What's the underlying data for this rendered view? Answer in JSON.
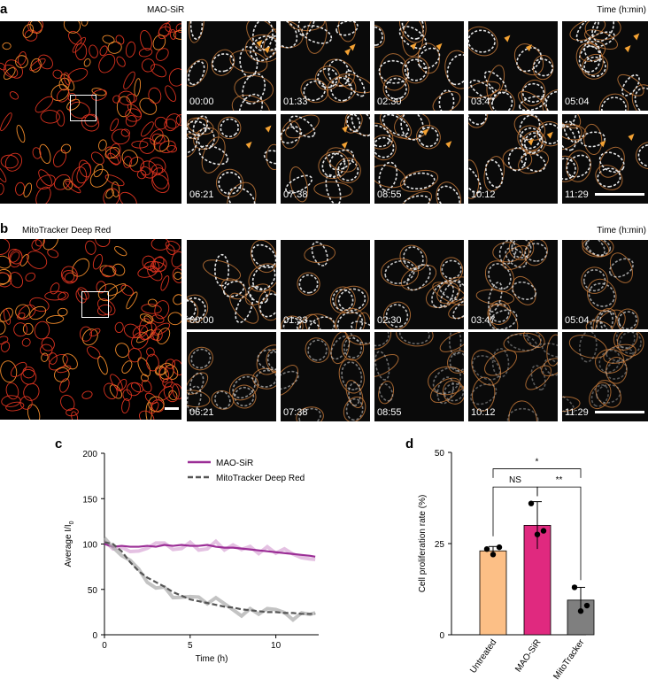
{
  "panel_a": {
    "label": "a",
    "title": "MAO-SiR",
    "time_header": "Time (h:min)",
    "timestamps": [
      "00:00",
      "01:33",
      "02:30",
      "03:47",
      "05:04",
      "06:21",
      "07:38",
      "08:55",
      "10:12",
      "11:29"
    ]
  },
  "panel_b": {
    "label": "b",
    "title": "MitoTracker Deep Red",
    "time_header": "Time (h:min)",
    "timestamps": [
      "00:00",
      "01:33",
      "02:30",
      "03:47",
      "05:04",
      "06:21",
      "07:38",
      "08:55",
      "10:12",
      "11:29"
    ]
  },
  "chart_data": [
    {
      "panel": "c",
      "type": "line",
      "xlabel": "Time (h)",
      "ylabel": "Average I/I",
      "ylabel_subscript": "0",
      "xlim": [
        0,
        12.5
      ],
      "ylim": [
        0,
        200
      ],
      "xticks": [
        0,
        5,
        10
      ],
      "yticks": [
        0,
        50,
        100,
        150,
        200
      ],
      "grid": false,
      "legend_position": "top-right",
      "series": [
        {
          "name": "MAO-SiR",
          "color": "#9b2e96",
          "style": "solid",
          "x": [
            0,
            0.5,
            1,
            1.5,
            2,
            2.5,
            3,
            3.5,
            4,
            4.5,
            5,
            5.5,
            6,
            6.5,
            7,
            7.5,
            8,
            8.5,
            9,
            9.5,
            10,
            10.5,
            11,
            11.5,
            12,
            12.3
          ],
          "y": [
            100,
            97,
            98,
            97,
            97,
            98,
            97,
            99,
            98,
            99,
            98,
            98,
            99,
            97,
            96,
            96,
            95,
            94,
            93,
            92,
            91,
            90,
            89,
            88,
            87,
            86
          ]
        },
        {
          "name": "MitoTracker Deep Red",
          "color": "#555555",
          "style": "dashed",
          "x": [
            0,
            0.5,
            1,
            1.5,
            2,
            2.5,
            3,
            3.5,
            4,
            4.5,
            5,
            5.5,
            6,
            6.5,
            7,
            7.5,
            8,
            8.5,
            9,
            9.5,
            10,
            10.5,
            11,
            11.5,
            12,
            12.3
          ],
          "y": [
            102,
            100,
            92,
            80,
            70,
            63,
            58,
            53,
            47,
            43,
            39,
            37,
            35,
            33,
            31,
            30,
            28,
            27,
            26,
            25,
            25,
            24,
            24,
            23,
            23,
            23
          ]
        }
      ]
    },
    {
      "panel": "d",
      "type": "bar",
      "ylabel": "Cell proliferation rate (%)",
      "ylim": [
        0,
        50
      ],
      "yticks": [
        0,
        25,
        50
      ],
      "categories": [
        "Untreated",
        "MAO-SiR",
        "MitoTracker"
      ],
      "colors": [
        "#fcbf86",
        "#e0297f",
        "#7f7f7f"
      ],
      "values": [
        23,
        30,
        9.5
      ],
      "errors": [
        1.2,
        6.5,
        3.5
      ],
      "points": [
        [
          23.5,
          22,
          24
        ],
        [
          36,
          27.5,
          28.5
        ],
        [
          13,
          6.5,
          8
        ]
      ],
      "significance": [
        {
          "from": 0,
          "to": 1,
          "label": "NS"
        },
        {
          "from": 1,
          "to": 2,
          "label": "**"
        },
        {
          "from": 0,
          "to": 2,
          "label": "*"
        }
      ]
    }
  ],
  "panel_c_label": "c",
  "panel_d_label": "d"
}
